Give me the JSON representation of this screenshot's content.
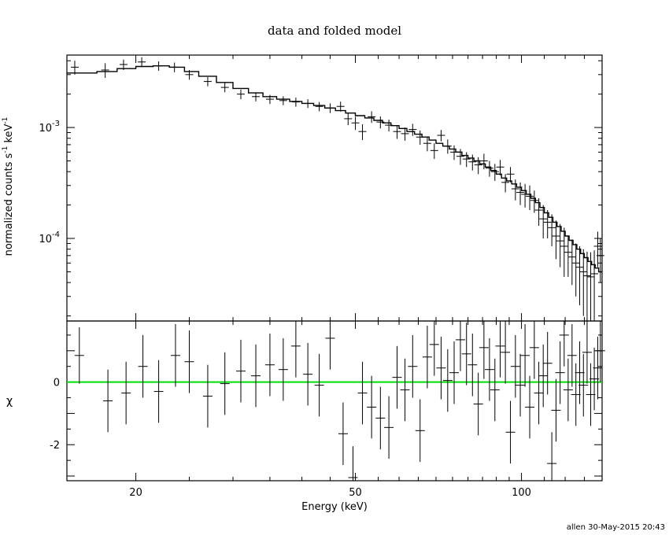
{
  "title": "data and folded model",
  "footer": "allen 30-May-2015 20:43",
  "colors": {
    "zero_line": "#00dd00",
    "ink": "#000000"
  },
  "chart_data": [
    {
      "panel": "top",
      "type": "scatter",
      "scale": {
        "x": "log",
        "y": "log"
      },
      "ylabel_text": "normalized counts s",
      "ylabel_sup1": "-1",
      "ylabel_unit": " keV",
      "ylabel_sup2": "-1",
      "xlim": [
        15,
        140
      ],
      "ylim": [
        1.8e-05,
        0.0045
      ],
      "y_ticks": [
        {
          "value": 0.001,
          "base": "10",
          "exp": "-3"
        },
        {
          "value": 0.0001,
          "base": "10",
          "exp": "-4"
        }
      ],
      "series": [
        {
          "role": "data",
          "points": [
            [
              15.5,
              0.0035,
              0.0005
            ],
            [
              17.6,
              0.0033,
              0.0005
            ],
            [
              19.0,
              0.0037,
              0.0004
            ],
            [
              20.5,
              0.0039,
              0.0004
            ],
            [
              22.0,
              0.0036,
              0.00035
            ],
            [
              23.5,
              0.0035,
              0.00035
            ],
            [
              25.0,
              0.003,
              0.0003
            ],
            [
              27.0,
              0.0026,
              0.00025
            ],
            [
              29.0,
              0.0023,
              0.00022
            ],
            [
              31.0,
              0.002,
              0.0002
            ],
            [
              33.0,
              0.0019,
              0.00018
            ],
            [
              35.0,
              0.0018,
              0.00017
            ],
            [
              37.0,
              0.00175,
              0.00016
            ],
            [
              39.0,
              0.0017,
              0.00016
            ],
            [
              41.0,
              0.00165,
              0.00015
            ],
            [
              43.0,
              0.00155,
              0.00015
            ],
            [
              45.0,
              0.0015,
              0.00015
            ],
            [
              47.0,
              0.00155,
              0.00016
            ],
            [
              48.5,
              0.0012,
              0.00015
            ],
            [
              50.0,
              0.0011,
              0.00015
            ],
            [
              51.5,
              0.00092,
              0.00015
            ],
            [
              53.5,
              0.00125,
              0.00015
            ],
            [
              55.5,
              0.00112,
              0.00014
            ],
            [
              57.5,
              0.00105,
              0.00013
            ],
            [
              59.5,
              0.00092,
              0.00013
            ],
            [
              61.5,
              0.00088,
              0.00012
            ],
            [
              63.5,
              0.00096,
              0.00012
            ],
            [
              65.5,
              0.00082,
              0.00012
            ],
            [
              67.5,
              0.00072,
              0.00011
            ],
            [
              69.5,
              0.00062,
              0.0001
            ],
            [
              71.5,
              0.00085,
              0.0001
            ],
            [
              73.5,
              0.00068,
              0.0001
            ],
            [
              75.5,
              0.0006,
              9e-05
            ],
            [
              77.5,
              0.00055,
              9e-05
            ],
            [
              79.5,
              0.00052,
              8e-05
            ],
            [
              81.5,
              0.00049,
              8e-05
            ],
            [
              83.5,
              0.00046,
              8e-05
            ],
            [
              85.5,
              0.0005,
              8e-05
            ],
            [
              87.5,
              0.00043,
              7e-05
            ],
            [
              89.5,
              0.0004,
              7e-05
            ],
            [
              91.5,
              0.00044,
              7e-05
            ],
            [
              93.5,
              0.00032,
              6e-05
            ],
            [
              95.5,
              0.00038,
              6e-05
            ],
            [
              97.5,
              0.00028,
              6e-05
            ],
            [
              99.5,
              0.00026,
              6e-05
            ],
            [
              101.5,
              0.00025,
              6e-05
            ],
            [
              103.5,
              0.00024,
              6e-05
            ],
            [
              105.5,
              0.00022,
              5e-05
            ],
            [
              107.5,
              0.00018,
              5e-05
            ],
            [
              109.5,
              0.00015,
              5e-05
            ],
            [
              111.5,
              0.00014,
              4e-05
            ],
            [
              113.5,
              0.000125,
              4e-05
            ],
            [
              115.5,
              0.000105,
              4e-05
            ],
            [
              117.5,
              9.5e-05,
              4e-05
            ],
            [
              119.5,
              8.5e-05,
              4e-05
            ],
            [
              121.5,
              7.5e-05,
              3e-05
            ],
            [
              123.5,
              6.8e-05,
              3e-05
            ],
            [
              125.5,
              6e-05,
              3e-05
            ],
            [
              127.5,
              5.5e-05,
              3e-05
            ],
            [
              129.5,
              5e-05,
              3e-05
            ],
            [
              131.5,
              4.6e-05,
              3e-05
            ],
            [
              133.5,
              4.5e-05,
              3e-05
            ],
            [
              135.5,
              4.8e-05,
              3e-05
            ],
            [
              137.5,
              8.5e-05,
              3e-05
            ],
            [
              139.0,
              7e-05,
              3e-05
            ]
          ]
        },
        {
          "role": "model",
          "steps": [
            [
              15,
              0.0031
            ],
            [
              17,
              0.0032
            ],
            [
              18.5,
              0.0034
            ],
            [
              20,
              0.00355
            ],
            [
              21.5,
              0.0036
            ],
            [
              23,
              0.0035
            ],
            [
              24.5,
              0.0032
            ],
            [
              26,
              0.0029
            ],
            [
              28,
              0.00255
            ],
            [
              30,
              0.00225
            ],
            [
              32,
              0.00205
            ],
            [
              34,
              0.0019
            ],
            [
              36,
              0.0018
            ],
            [
              38,
              0.00172
            ],
            [
              40,
              0.00165
            ],
            [
              42,
              0.00158
            ],
            [
              44,
              0.0015
            ],
            [
              46,
              0.00142
            ],
            [
              48,
              0.00135
            ],
            [
              50,
              0.00128
            ],
            [
              52,
              0.00122
            ],
            [
              54,
              0.00116
            ],
            [
              56,
              0.0011
            ],
            [
              58,
              0.00104
            ],
            [
              60,
              0.00098
            ],
            [
              62,
              0.00092
            ],
            [
              64,
              0.00087
            ],
            [
              66,
              0.00082
            ],
            [
              68,
              0.00077
            ],
            [
              70,
              0.00072
            ],
            [
              72,
              0.00068
            ],
            [
              74,
              0.00064
            ],
            [
              76,
              0.0006
            ],
            [
              78,
              0.00056
            ],
            [
              80,
              0.00053
            ],
            [
              82,
              0.0005
            ],
            [
              84,
              0.00047
            ],
            [
              86,
              0.00044
            ],
            [
              88,
              0.00041
            ],
            [
              90,
              0.00038
            ],
            [
              92,
              0.00035
            ],
            [
              94,
              0.00033
            ],
            [
              96,
              0.00031
            ],
            [
              98,
              0.00029
            ],
            [
              100,
              0.00027
            ],
            [
              102,
              0.00025
            ],
            [
              104,
              0.00023
            ],
            [
              106,
              0.00021
            ],
            [
              108,
              0.00019
            ],
            [
              110,
              0.00017
            ],
            [
              112,
              0.000155
            ],
            [
              114,
              0.00014
            ],
            [
              116,
              0.000128
            ],
            [
              118,
              0.000116
            ],
            [
              120,
              0.000105
            ],
            [
              122,
              9.6e-05
            ],
            [
              124,
              8.8e-05
            ],
            [
              126,
              8e-05
            ],
            [
              128,
              7.3e-05
            ],
            [
              130,
              6.7e-05
            ],
            [
              132,
              6.2e-05
            ],
            [
              134,
              5.8e-05
            ],
            [
              136,
              5.4e-05
            ],
            [
              138,
              5e-05
            ],
            [
              140,
              5e-05
            ]
          ]
        }
      ]
    },
    {
      "panel": "bottom",
      "type": "scatter",
      "scale": {
        "x": "log",
        "y": "linear"
      },
      "ylabel": "χ",
      "xlabel": "Energy (keV)",
      "xlim": [
        15,
        140
      ],
      "ylim": [
        -3.15,
        1.95
      ],
      "x_ticks": [
        {
          "value": 20,
          "label": "20"
        },
        {
          "value": 50,
          "label": "50"
        },
        {
          "value": 100,
          "label": "100"
        }
      ],
      "y_ticks": [
        {
          "value": 0,
          "label": "0"
        },
        {
          "value": -2,
          "label": "-2"
        }
      ],
      "zero_line": 0,
      "points": [
        [
          15.8,
          0.85,
          0.9
        ],
        [
          17.8,
          -0.6,
          1.0
        ],
        [
          19.2,
          -0.35,
          1.0
        ],
        [
          20.6,
          0.5,
          1.0
        ],
        [
          22.0,
          -0.3,
          1.0
        ],
        [
          23.6,
          0.85,
          1.0
        ],
        [
          25.0,
          0.65,
          1.0
        ],
        [
          27.0,
          -0.45,
          1.0
        ],
        [
          29.0,
          -0.05,
          1.0
        ],
        [
          31.0,
          0.35,
          1.0
        ],
        [
          33.0,
          0.2,
          1.0
        ],
        [
          35.0,
          0.55,
          1.0
        ],
        [
          37.0,
          0.4,
          1.0
        ],
        [
          39.0,
          1.15,
          1.0
        ],
        [
          41.0,
          0.25,
          1.0
        ],
        [
          43.0,
          -0.1,
          1.0
        ],
        [
          45.0,
          1.4,
          1.0
        ],
        [
          47.5,
          -1.65,
          1.0
        ],
        [
          49.5,
          -3.05,
          1.0
        ],
        [
          51.5,
          -0.35,
          1.0
        ],
        [
          53.5,
          -0.8,
          1.0
        ],
        [
          55.5,
          -1.15,
          1.0
        ],
        [
          57.5,
          -1.45,
          1.0
        ],
        [
          59.5,
          0.15,
          1.0
        ],
        [
          61.5,
          -0.25,
          1.0
        ],
        [
          63.5,
          0.5,
          1.0
        ],
        [
          65.5,
          -1.55,
          1.0
        ],
        [
          67.5,
          0.8,
          1.0
        ],
        [
          69.5,
          1.2,
          1.0
        ],
        [
          71.5,
          0.45,
          1.0
        ],
        [
          73.5,
          0.05,
          1.0
        ],
        [
          75.5,
          0.3,
          1.0
        ],
        [
          77.5,
          1.35,
          1.0
        ],
        [
          79.5,
          0.9,
          1.0
        ],
        [
          81.5,
          0.55,
          1.0
        ],
        [
          83.5,
          -0.7,
          1.0
        ],
        [
          85.5,
          1.1,
          1.0
        ],
        [
          87.5,
          0.4,
          1.0
        ],
        [
          89.5,
          -0.25,
          1.0
        ],
        [
          91.5,
          1.15,
          1.0
        ],
        [
          93.5,
          0.95,
          1.0
        ],
        [
          95.5,
          -1.6,
          1.0
        ],
        [
          97.5,
          0.5,
          1.0
        ],
        [
          99.5,
          -0.1,
          1.0
        ],
        [
          101.5,
          0.85,
          1.0
        ],
        [
          103.5,
          -0.8,
          1.0
        ],
        [
          105.5,
          1.1,
          1.0
        ],
        [
          107.5,
          -0.35,
          1.0
        ],
        [
          109.5,
          0.2,
          1.0
        ],
        [
          111.5,
          0.6,
          1.0
        ],
        [
          113.5,
          -2.6,
          1.0
        ],
        [
          115.5,
          -0.9,
          1.0
        ],
        [
          117.5,
          0.3,
          1.0
        ],
        [
          119.5,
          1.5,
          1.0
        ],
        [
          121.5,
          -0.25,
          1.0
        ],
        [
          123.5,
          0.85,
          1.0
        ],
        [
          125.5,
          -0.4,
          1.0
        ],
        [
          127.5,
          0.3,
          1.0
        ],
        [
          129.5,
          -0.1,
          1.0
        ],
        [
          131.5,
          0.95,
          1.0
        ],
        [
          133.5,
          -0.4,
          1.0
        ],
        [
          135.5,
          0.1,
          1.0
        ],
        [
          137.5,
          0.45,
          1.0
        ],
        [
          139.0,
          1.0,
          1.0
        ]
      ]
    }
  ]
}
